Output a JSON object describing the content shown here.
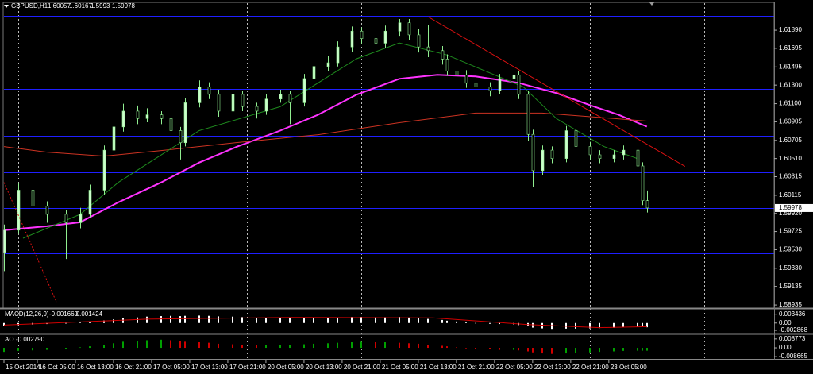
{
  "chart_data": {
    "type": "candlestick",
    "title": "GBPUSD,H1",
    "x": [
      0,
      3,
      6,
      9,
      13,
      16,
      18,
      21,
      23,
      25,
      28,
      30,
      33,
      35,
      37,
      38,
      41,
      43,
      45,
      48,
      50,
      53,
      55,
      58,
      60,
      63,
      65,
      68,
      70,
      73,
      75,
      78,
      80,
      83,
      85,
      87,
      89,
      92,
      93,
      95,
      97,
      99,
      102,
      104,
      107,
      108,
      110,
      111,
      113,
      115,
      118,
      120,
      123,
      125,
      128,
      130,
      133,
      134,
      135
    ],
    "open": [
      1.595,
      1.5974,
      1.6017,
      1.6,
      1.5991,
      1.5982,
      1.5991,
      1.6017,
      1.606,
      1.6085,
      1.6102,
      1.6094,
      1.6098,
      1.6094,
      1.6081,
      1.6068,
      1.6111,
      1.6128,
      1.612,
      1.6102,
      1.612,
      1.6107,
      1.6102,
      1.6115,
      1.612,
      1.6111,
      1.6137,
      1.615,
      1.6154,
      1.6171,
      1.6188,
      1.618,
      1.6175,
      1.6188,
      1.6197,
      1.6184,
      1.6171,
      1.6167,
      1.6158,
      1.6145,
      1.6141,
      1.6132,
      1.6128,
      1.6124,
      1.6137,
      1.6141,
      1.612,
      1.6077,
      1.6038,
      1.606,
      1.6051,
      1.6081,
      1.6064,
      1.6055,
      1.6051,
      1.6055,
      1.606,
      1.6043,
      1.60057
    ],
    "high": [
      1.598,
      1.6025,
      1.6022,
      1.6005,
      1.5996,
      1.5998,
      1.6023,
      1.6065,
      1.6093,
      1.611,
      1.6108,
      1.6105,
      1.6102,
      1.6098,
      1.6085,
      1.6116,
      1.6135,
      1.6133,
      1.6125,
      1.6126,
      1.6124,
      1.6111,
      1.612,
      1.6125,
      1.6124,
      1.6142,
      1.6156,
      1.6161,
      1.6177,
      1.6193,
      1.6192,
      1.6185,
      1.6194,
      1.6201,
      1.6201,
      1.619,
      1.6195,
      1.6172,
      1.6163,
      1.615,
      1.6146,
      1.6137,
      1.6133,
      1.6142,
      1.6147,
      1.6145,
      1.6124,
      1.6082,
      1.6065,
      1.6064,
      1.6086,
      1.6085,
      1.6069,
      1.606,
      1.606,
      1.6065,
      1.6064,
      1.6047,
      1.60167
    ],
    "low": [
      1.593,
      1.597,
      1.5995,
      1.5982,
      1.5943,
      1.5976,
      1.5988,
      1.6012,
      1.6055,
      1.608,
      1.6088,
      1.609,
      1.6088,
      1.6076,
      1.605,
      1.6064,
      1.6106,
      1.6115,
      1.6096,
      1.6098,
      1.6102,
      1.6094,
      1.6098,
      1.6111,
      1.6088,
      1.6107,
      1.6133,
      1.6145,
      1.615,
      1.6166,
      1.6174,
      1.6169,
      1.617,
      1.6183,
      1.6178,
      1.6165,
      1.616,
      1.6152,
      1.614,
      1.6135,
      1.6127,
      1.6122,
      1.6118,
      1.612,
      1.6133,
      1.6115,
      1.607,
      1.602,
      1.6033,
      1.6046,
      1.6047,
      1.6059,
      1.605,
      1.6046,
      1.6047,
      1.605,
      1.6038,
      1.6001,
      1.5993
    ],
    "close": [
      1.5974,
      1.6017,
      1.6,
      1.5991,
      1.5982,
      1.5991,
      1.6017,
      1.606,
      1.6085,
      1.6102,
      1.6094,
      1.6098,
      1.6094,
      1.6081,
      1.6068,
      1.6111,
      1.6128,
      1.612,
      1.6102,
      1.612,
      1.6107,
      1.6102,
      1.6115,
      1.612,
      1.6111,
      1.6137,
      1.615,
      1.6154,
      1.6171,
      1.6188,
      1.618,
      1.6175,
      1.6188,
      1.6197,
      1.6184,
      1.6171,
      1.6167,
      1.6158,
      1.6145,
      1.6141,
      1.6132,
      1.6128,
      1.6124,
      1.6137,
      1.6141,
      1.612,
      1.6077,
      1.6038,
      1.606,
      1.6051,
      1.6081,
      1.6064,
      1.6055,
      1.6051,
      1.6055,
      1.606,
      1.6043,
      1.60057,
      1.59978
    ],
    "bull_color": "#ccffcc",
    "bear_color": "#000000",
    "wick_color": "#90ee90",
    "xlim": [
      0,
      161.7
    ],
    "xticks": [
      {
        "value": 0,
        "label": "15 Oct 2014"
      },
      {
        "value": 7,
        "label": "16 Oct 05:00"
      },
      {
        "value": 15,
        "label": "16 Oct 13:00"
      },
      {
        "value": 23,
        "label": "16 Oct 21:00"
      },
      {
        "value": 31,
        "label": "17 Oct 05:00"
      },
      {
        "value": 39,
        "label": "17 Oct 13:00"
      },
      {
        "value": 47,
        "label": "17 Oct 21:00"
      },
      {
        "value": 55,
        "label": "20 Oct 05:00"
      },
      {
        "value": 63,
        "label": "20 Oct 13:00"
      },
      {
        "value": 71,
        "label": "20 Oct 21:00"
      },
      {
        "value": 79,
        "label": "21 Oct 05:00"
      },
      {
        "value": 87,
        "label": "21 Oct 13:00"
      },
      {
        "value": 95,
        "label": "21 Oct 21:00"
      },
      {
        "value": 103,
        "label": "22 Oct 05:00"
      },
      {
        "value": 111,
        "label": "22 Oct 13:00"
      },
      {
        "value": 119,
        "label": "22 Oct 21:00"
      },
      {
        "value": 127,
        "label": "23 Oct 05:00"
      }
    ],
    "xgrid": [
      3,
      27,
      51,
      75,
      99,
      123,
      147
    ],
    "ylim": [
      1.5891,
      1.62181
    ],
    "yticks": [
      {
        "value": 1.6189,
        "label": "1.61890"
      },
      {
        "value": 1.61695,
        "label": "1.61695"
      },
      {
        "value": 1.61495,
        "label": "1.61495"
      },
      {
        "value": 1.613,
        "label": "1.61300"
      },
      {
        "value": 1.611,
        "label": "1.61100"
      },
      {
        "value": 1.60905,
        "label": "1.60905"
      },
      {
        "value": 1.60705,
        "label": "1.60705"
      },
      {
        "value": 1.6051,
        "label": "1.60510"
      },
      {
        "value": 1.60315,
        "label": "1.60315"
      },
      {
        "value": 1.60115,
        "label": "1.60115"
      },
      {
        "value": 1.5992,
        "label": "1.59920"
      },
      {
        "value": 1.59725,
        "label": "1.59725"
      },
      {
        "value": 1.5953,
        "label": "1.59530"
      },
      {
        "value": 1.5933,
        "label": "1.59330"
      },
      {
        "value": 1.59135,
        "label": "1.59135"
      },
      {
        "value": 1.58935,
        "label": "1.58935"
      }
    ],
    "levels": {
      "color": "#1f1fff",
      "values": [
        1.62044,
        1.61256,
        1.60759,
        1.60365,
        1.59979,
        1.5949
      ]
    },
    "moving_averages": [
      {
        "color": "#ff33ff",
        "x": [
          0,
          9,
          16,
          24,
          33,
          41,
          49,
          58,
          66,
          74,
          83,
          91,
          99,
          108,
          116,
          124,
          129,
          135
        ],
        "values": [
          1.59739,
          1.59782,
          1.59825,
          1.60039,
          1.60253,
          1.60467,
          1.60639,
          1.6081,
          1.60982,
          1.61196,
          1.61367,
          1.6141,
          1.61393,
          1.61324,
          1.61213,
          1.61067,
          1.60982,
          1.60853
        ]
      },
      {
        "color": "#cc3322",
        "x": [
          0,
          9,
          21,
          33,
          49,
          66,
          83,
          99,
          113,
          124,
          135
        ],
        "values": [
          1.60639,
          1.60579,
          1.60536,
          1.60596,
          1.60682,
          1.60767,
          1.60896,
          1.60999,
          1.60999,
          1.60956,
          1.60913
        ]
      },
      {
        "color": "#1e8a1e",
        "x": [
          4,
          16,
          24,
          41,
          58,
          74,
          83,
          93,
          103,
          109,
          116,
          126,
          133
        ],
        "values": [
          1.59653,
          1.5991,
          1.60253,
          1.6081,
          1.61067,
          1.61582,
          1.61753,
          1.61624,
          1.6141,
          1.61282,
          1.60939,
          1.60639,
          1.6051
        ]
      }
    ],
    "trendlines": [
      {
        "color": "#dd1111",
        "dashed": false,
        "x": [
          89,
          143
        ],
        "values": [
          1.62036,
          1.60425
        ]
      },
      {
        "color": "#dd1111",
        "dashed": true,
        "x": [
          0,
          11
        ],
        "values": [
          1.60253,
          1.58968
        ]
      }
    ],
    "macd": {
      "title": "MACD(12,26,9)",
      "main_label": "-0.001660",
      "signal_label": "-0.001424",
      "color": "#ffffff",
      "signal_color": "#d00000",
      "values": [
        -0.001,
        -0.0008,
        -0.0006,
        -0.0004,
        -0.0002,
        0.0002,
        0.0005,
        0.001,
        0.0014,
        0.0018,
        0.0022,
        0.0025,
        0.0027,
        0.0028,
        0.0027,
        0.0028,
        0.0029,
        0.0028,
        0.0026,
        0.0025,
        0.0023,
        0.0021,
        0.002,
        0.0019,
        0.0018,
        0.0019,
        0.002,
        0.0021,
        0.0022,
        0.0024,
        0.0024,
        0.0023,
        0.0023,
        0.0024,
        0.0022,
        0.0019,
        0.0016,
        0.0012,
        0.0009,
        0.0006,
        0.0003,
        0,
        -0.0003,
        -0.0004,
        -0.0005,
        -0.0008,
        -0.0013,
        -0.0018,
        -0.0021,
        -0.0023,
        -0.0022,
        -0.0022,
        -0.0021,
        -0.002,
        -0.0019,
        -0.0017,
        -0.0016,
        -0.0016,
        -0.00166
      ],
      "signal_x": [
        0,
        30,
        60,
        90,
        110,
        125,
        135
      ],
      "signal": [
        -0.0008,
        0.0015,
        0.0022,
        0.002,
        -0.0006,
        -0.0018,
        -0.001424
      ],
      "ylim": [
        -0.0041,
        0.0052
      ],
      "yticks": [
        0.003436,
        {
          "value": 0,
          "label": "0.00"
        },
        -0.002868
      ]
    },
    "ao": {
      "title": "AO",
      "label": "-0.002790",
      "up_color": "#00a000",
      "down_color": "#d00000",
      "values": [
        -0.004,
        -0.003,
        -0.0025,
        -0.002,
        -0.001,
        0.0005,
        0.0015,
        0.003,
        0.0045,
        0.006,
        0.007,
        0.0075,
        0.008,
        0.0075,
        0.0065,
        0.006,
        0.0055,
        0.005,
        0.004,
        0.0035,
        0.003,
        0.0025,
        0.0025,
        0.0025,
        0.003,
        0.0035,
        0.004,
        0.0045,
        0.005,
        0.0055,
        0.006,
        0.0055,
        0.0055,
        0.005,
        0.0045,
        0.004,
        0.003,
        0.002,
        0.0015,
        0.0005,
        -0.0005,
        -0.001,
        -0.0015,
        -0.002,
        -0.002,
        -0.0025,
        -0.0035,
        -0.0045,
        -0.0055,
        -0.006,
        -0.0055,
        -0.005,
        -0.0045,
        -0.004,
        -0.0035,
        -0.003,
        -0.0028,
        -0.0028,
        -0.00279
      ],
      "ylim": [
        -0.01094,
        0.01256
      ],
      "yticks": [
        0.008773,
        {
          "value": 0,
          "label": "0.00"
        },
        -0.008665
      ]
    }
  }
}
